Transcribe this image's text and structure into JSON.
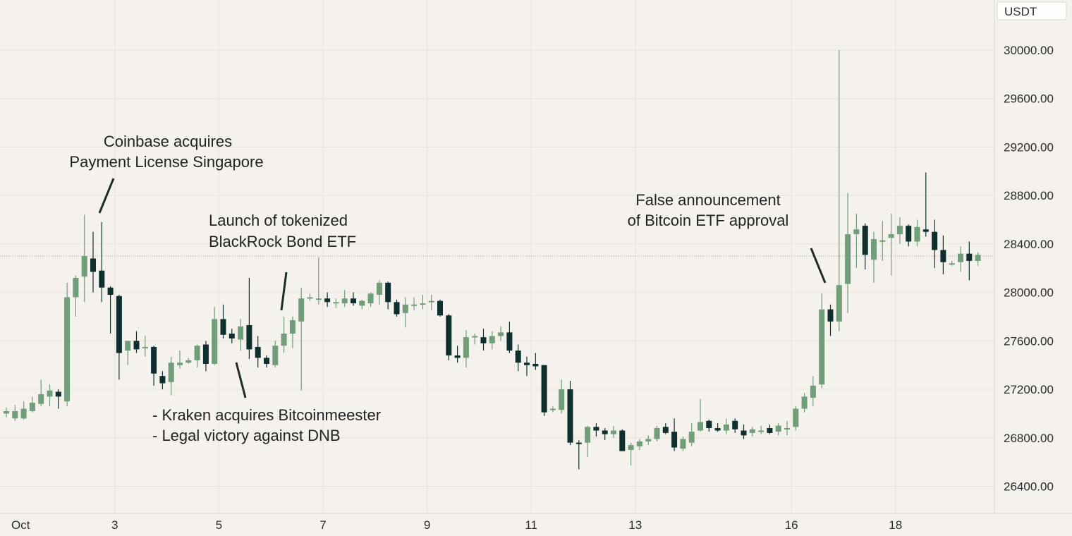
{
  "colors": {
    "up": "#6f9e78",
    "down": "#0e2f2d",
    "background": "#f5f2ed"
  },
  "chart_data": {
    "type": "candlestick",
    "title": "",
    "unit": "USDT",
    "ylim": [
      26150,
      30400
    ],
    "yticks": [
      26400,
      26800,
      27200,
      27600,
      28000,
      28400,
      28800,
      29200,
      29600,
      30000
    ],
    "ytick_labels": [
      "26400.00",
      "26800.00",
      "27200.00",
      "27600.00",
      "28000.00",
      "28400.00",
      "28800.00",
      "29200.00",
      "29600.00",
      "30000.00"
    ],
    "current_price": 28300,
    "grid": true,
    "xticks": [
      {
        "label": "Oct",
        "index": 1.7
      },
      {
        "label": "3",
        "index": 12.5
      },
      {
        "label": "5",
        "index": 24.5
      },
      {
        "label": "7",
        "index": 36.5
      },
      {
        "label": "9",
        "index": 48.5
      },
      {
        "label": "11",
        "index": 60.5
      },
      {
        "label": "13",
        "index": 72.5
      },
      {
        "label": "16",
        "index": 90.5
      },
      {
        "label": "18",
        "index": 102.5
      }
    ],
    "candles": [
      [
        27000,
        27050,
        26970,
        27020
      ],
      [
        26960,
        27070,
        26940,
        27020
      ],
      [
        26960,
        27100,
        26950,
        27040
      ],
      [
        27020,
        27140,
        27010,
        27090
      ],
      [
        27080,
        27280,
        27060,
        27160
      ],
      [
        27140,
        27240,
        27060,
        27190
      ],
      [
        27180,
        27200,
        27040,
        27140
      ],
      [
        27100,
        28080,
        27060,
        27960
      ],
      [
        27960,
        28140,
        27800,
        28120
      ],
      [
        28130,
        28640,
        27920,
        28300
      ],
      [
        28280,
        28500,
        28000,
        28170
      ],
      [
        28180,
        28580,
        27920,
        28040
      ],
      [
        28040,
        28050,
        27660,
        27980
      ],
      [
        27970,
        27980,
        27280,
        27500
      ],
      [
        27520,
        27600,
        27400,
        27600
      ],
      [
        27600,
        27680,
        27500,
        27530
      ],
      [
        27540,
        27640,
        27470,
        27550
      ],
      [
        27550,
        27560,
        27230,
        27330
      ],
      [
        27310,
        27350,
        27200,
        27250
      ],
      [
        27260,
        27470,
        27150,
        27420
      ],
      [
        27400,
        27520,
        27370,
        27420
      ],
      [
        27420,
        27460,
        27410,
        27440
      ],
      [
        27440,
        27570,
        27380,
        27560
      ],
      [
        27570,
        27600,
        27350,
        27410
      ],
      [
        27410,
        27880,
        27400,
        27780
      ],
      [
        27780,
        27900,
        27620,
        27650
      ],
      [
        27660,
        27700,
        27580,
        27620
      ],
      [
        27610,
        27780,
        27520,
        27720
      ],
      [
        27730,
        28120,
        27450,
        27530
      ],
      [
        27550,
        27640,
        27380,
        27460
      ],
      [
        27460,
        27480,
        27380,
        27410
      ],
      [
        27400,
        27600,
        27380,
        27560
      ],
      [
        27560,
        27800,
        27500,
        27660
      ],
      [
        27660,
        27800,
        27540,
        27770
      ],
      [
        27760,
        28040,
        27190,
        27950
      ],
      [
        27950,
        27990,
        27930,
        27960
      ],
      [
        27940,
        28290,
        27900,
        27950
      ],
      [
        27950,
        28000,
        27880,
        27920
      ],
      [
        27920,
        27950,
        27870,
        27920
      ],
      [
        27910,
        28020,
        27880,
        27950
      ],
      [
        27950,
        28000,
        27890,
        27910
      ],
      [
        27890,
        27940,
        27860,
        27930
      ],
      [
        27910,
        28000,
        27880,
        27990
      ],
      [
        27980,
        28100,
        27900,
        28080
      ],
      [
        28080,
        28090,
        27860,
        27920
      ],
      [
        27920,
        27940,
        27800,
        27820
      ],
      [
        27830,
        27960,
        27710,
        27900
      ],
      [
        27890,
        27960,
        27850,
        27900
      ],
      [
        27900,
        27980,
        27860,
        27910
      ],
      [
        27920,
        27980,
        27850,
        27930
      ],
      [
        27930,
        27940,
        27800,
        27810
      ],
      [
        27810,
        27820,
        27440,
        27480
      ],
      [
        27480,
        27560,
        27420,
        27460
      ],
      [
        27460,
        27690,
        27380,
        27630
      ],
      [
        27630,
        27660,
        27570,
        27640
      ],
      [
        27630,
        27700,
        27520,
        27580
      ],
      [
        27580,
        27680,
        27530,
        27640
      ],
      [
        27640,
        27720,
        27600,
        27670
      ],
      [
        27670,
        27760,
        27500,
        27520
      ],
      [
        27520,
        27570,
        27350,
        27420
      ],
      [
        27420,
        27470,
        27310,
        27400
      ],
      [
        27410,
        27500,
        27360,
        27390
      ],
      [
        27400,
        27400,
        26980,
        27010
      ],
      [
        27030,
        27060,
        27010,
        27040
      ],
      [
        27030,
        27280,
        27000,
        27200
      ],
      [
        27200,
        27270,
        26740,
        26760
      ],
      [
        26760,
        26780,
        26540,
        26750
      ],
      [
        26760,
        26900,
        26640,
        26890
      ],
      [
        26890,
        26920,
        26810,
        26860
      ],
      [
        26860,
        26880,
        26780,
        26830
      ],
      [
        26830,
        26900,
        26800,
        26860
      ],
      [
        26860,
        26870,
        26690,
        26690
      ],
      [
        26700,
        26760,
        26570,
        26740
      ],
      [
        26730,
        26790,
        26700,
        26770
      ],
      [
        26770,
        26820,
        26740,
        26790
      ],
      [
        26790,
        26900,
        26770,
        26880
      ],
      [
        26890,
        26920,
        26830,
        26840
      ],
      [
        26850,
        26960,
        26690,
        26720
      ],
      [
        26710,
        26810,
        26690,
        26790
      ],
      [
        26760,
        26920,
        26730,
        26850
      ],
      [
        26860,
        27120,
        26850,
        26930
      ],
      [
        26940,
        26950,
        26850,
        26880
      ],
      [
        26880,
        26920,
        26850,
        26860
      ],
      [
        26860,
        26960,
        26830,
        26910
      ],
      [
        26940,
        26960,
        26840,
        26870
      ],
      [
        26860,
        26910,
        26790,
        26820
      ],
      [
        26840,
        26890,
        26810,
        26870
      ],
      [
        26860,
        26900,
        26830,
        26860
      ],
      [
        26880,
        26910,
        26830,
        26840
      ],
      [
        26850,
        26920,
        26820,
        26900
      ],
      [
        26870,
        26940,
        26820,
        26880
      ],
      [
        26890,
        27060,
        26860,
        27040
      ],
      [
        27040,
        27170,
        27010,
        27140
      ],
      [
        27130,
        27310,
        27060,
        27230
      ],
      [
        27240,
        27990,
        27210,
        27860
      ],
      [
        27860,
        27900,
        27640,
        27760
      ],
      [
        27760,
        30000,
        27680,
        28060
      ],
      [
        28070,
        28820,
        27830,
        28480
      ],
      [
        28480,
        28650,
        28200,
        28520
      ],
      [
        28550,
        28570,
        28190,
        28310
      ],
      [
        28270,
        28500,
        28080,
        28440
      ],
      [
        28420,
        28590,
        28260,
        28430
      ],
      [
        28450,
        28650,
        28140,
        28480
      ],
      [
        28480,
        28620,
        28400,
        28550
      ],
      [
        28550,
        28560,
        28380,
        28420
      ],
      [
        28420,
        28600,
        28380,
        28540
      ],
      [
        28520,
        28990,
        28460,
        28500
      ],
      [
        28500,
        28600,
        28200,
        28350
      ],
      [
        28350,
        28470,
        28150,
        28250
      ],
      [
        28240,
        28260,
        28220,
        28240
      ],
      [
        28250,
        28380,
        28170,
        28320
      ],
      [
        28320,
        28420,
        28100,
        28260
      ],
      [
        28260,
        28330,
        28220,
        28310
      ]
    ],
    "annotations": [
      {
        "lines": [
          "Coinbase acquires",
          "Payment License Singapore"
        ]
      },
      {
        "lines": [
          "Launch of tokenized",
          "BlackRock Bond ETF"
        ]
      },
      {
        "lines": [
          "- Kraken acquires Bitcoinmeester",
          "- Legal victory against DNB"
        ]
      },
      {
        "lines": [
          "False announcement",
          "of Bitcoin ETF approval"
        ]
      }
    ]
  }
}
